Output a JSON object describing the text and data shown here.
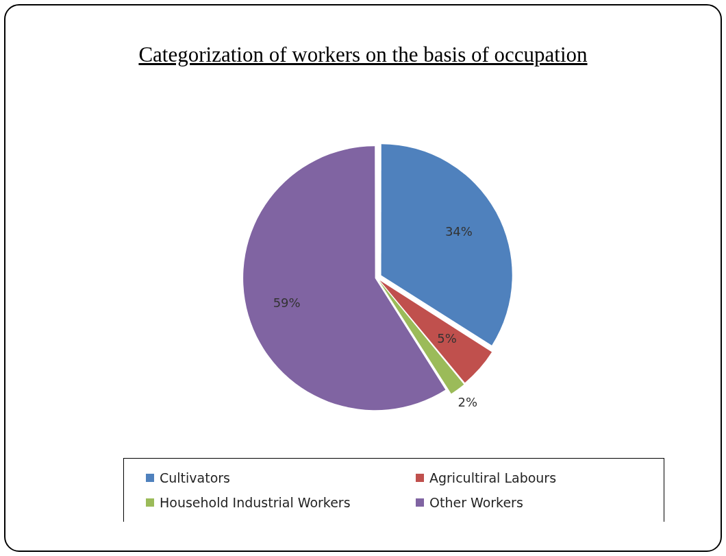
{
  "chart_data": {
    "type": "pie",
    "title": "Categorization of workers on the basis of occupation",
    "categories": [
      "Cultivators",
      "Agricultiral Labours",
      "Household Industrial Workers",
      "Other Workers"
    ],
    "values": [
      34,
      5,
      2,
      59
    ],
    "colors": [
      "#4f81bd",
      "#c0504d",
      "#9bbb59",
      "#8064a2"
    ],
    "value_labels": [
      "34%",
      "5%",
      "2%",
      "59%"
    ],
    "legend": "bottom"
  }
}
